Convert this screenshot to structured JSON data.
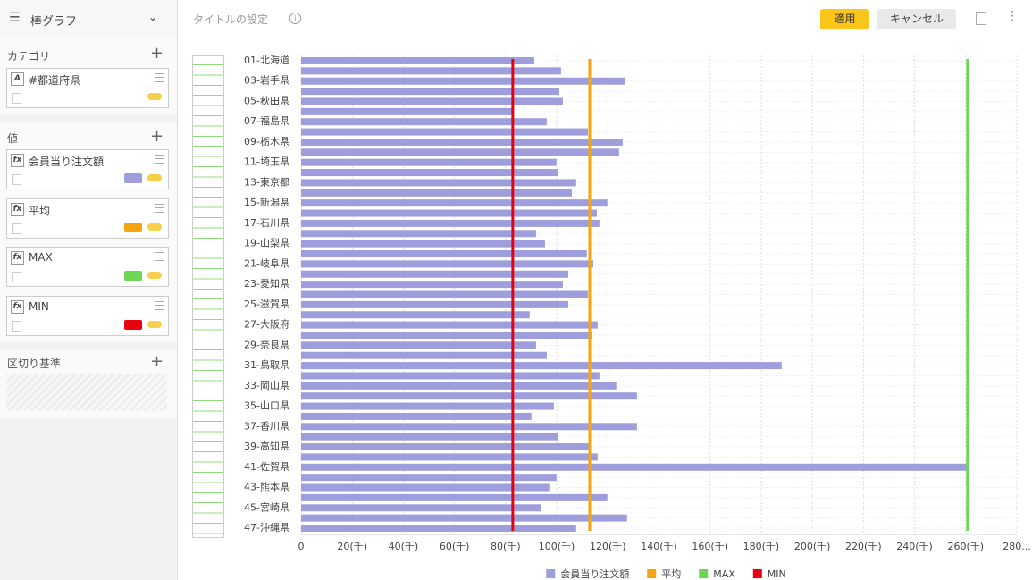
{
  "toolbar": {
    "chart_type": "棒グラフ",
    "title_placeholder": "タイトルの設定",
    "apply": "適用",
    "cancel": "キャンセル"
  },
  "sidebar": {
    "category_header": "カテゴリ",
    "category_field": {
      "icon": "A",
      "name": "#都道府県"
    },
    "values_header": "値",
    "value_fields": [
      {
        "icon": "fx",
        "name": "会員当り注文額"
      },
      {
        "icon": "fx",
        "name": "平均"
      },
      {
        "icon": "fx",
        "name": "MAX"
      },
      {
        "icon": "fx",
        "name": "MIN"
      }
    ],
    "breakdown_header": "区切り基準"
  },
  "chart_data": {
    "type": "bar",
    "orientation": "horizontal",
    "grid": true,
    "categories": [
      "01-北海道",
      null,
      "03-岩手県",
      null,
      "05-秋田県",
      null,
      "07-福島県",
      null,
      "09-栃木県",
      null,
      "11-埼玉県",
      null,
      "13-東京都",
      null,
      "15-新潟県",
      null,
      "17-石川県",
      null,
      "19-山梨県",
      null,
      "21-岐阜県",
      null,
      "23-愛知県",
      null,
      "25-滋賀県",
      null,
      "27-大阪府",
      null,
      "29-奈良県",
      null,
      "31-鳥取県",
      null,
      "33-岡山県",
      null,
      "35-山口県",
      null,
      "37-香川県",
      null,
      "39-高知県",
      null,
      "41-佐賀県",
      null,
      "43-熊本県",
      null,
      "45-宮崎県",
      null,
      "47-沖縄県"
    ],
    "series": [
      {
        "name": "会員当り注文額",
        "color": "#9e9edc",
        "values": [
          91200,
          101700,
          126800,
          101000,
          102400,
          82800,
          96100,
          112200,
          125800,
          124400,
          99900,
          100600,
          107600,
          105900,
          119800,
          115700,
          116700,
          91900,
          95400,
          111800,
          114300,
          104500,
          102400,
          112200,
          104500,
          89400,
          116000,
          113600,
          91900,
          96100,
          188000,
          116700,
          123300,
          131400,
          98900,
          90100,
          131400,
          100600,
          112500,
          116000,
          260700,
          99900,
          97100,
          119800,
          94000,
          127500,
          107600
        ]
      }
    ],
    "reference_lines": [
      {
        "name": "平均",
        "color": "#f5a50f",
        "value": 112900
      },
      {
        "name": "MAX",
        "color": "#6cd655",
        "value": 260700
      },
      {
        "name": "MIN",
        "color": "#e8000e",
        "value": 82800
      }
    ],
    "xlim": [
      0,
      280000
    ],
    "xticks": [
      0,
      {
        "value": 20000,
        "label": "20(千)"
      },
      {
        "value": 40000,
        "label": "40(千)"
      },
      {
        "value": 60000,
        "label": "60(千)"
      },
      {
        "value": 80000,
        "label": "80(千)"
      },
      {
        "value": 100000,
        "label": "100(千)"
      },
      {
        "value": 120000,
        "label": "120(千)"
      },
      {
        "value": 140000,
        "label": "140(千)"
      },
      {
        "value": 160000,
        "label": "160(千)"
      },
      {
        "value": 180000,
        "label": "180(千)"
      },
      {
        "value": 200000,
        "label": "200(千)"
      },
      {
        "value": 220000,
        "label": "220(千)"
      },
      {
        "value": 240000,
        "label": "240(千)"
      },
      {
        "value": 260000,
        "label": "260(千)"
      },
      {
        "value": 280000,
        "label": "280..."
      }
    ]
  }
}
